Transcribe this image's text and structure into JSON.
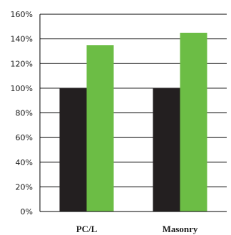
{
  "chart_data": {
    "type": "bar",
    "title": "",
    "xlabel": "",
    "ylabel": "",
    "ylim": [
      0,
      160
    ],
    "y_ticks": [
      0,
      20,
      40,
      60,
      80,
      100,
      120,
      140,
      160
    ],
    "y_tick_labels": [
      "0%",
      "20%",
      "40%",
      "60%",
      "80%",
      "100%",
      "120%",
      "140%",
      "160%"
    ],
    "grid": true,
    "legend": "none",
    "categories": [
      "PC/L",
      "Masonry"
    ],
    "series": [
      {
        "values": [
          100,
          100
        ],
        "color": "#231f20"
      },
      {
        "values": [
          135,
          145
        ],
        "color": "#6cbd45"
      }
    ]
  },
  "colors": {
    "gridline": "#000000",
    "axis": "#000000",
    "text": "#1a1a1a"
  }
}
